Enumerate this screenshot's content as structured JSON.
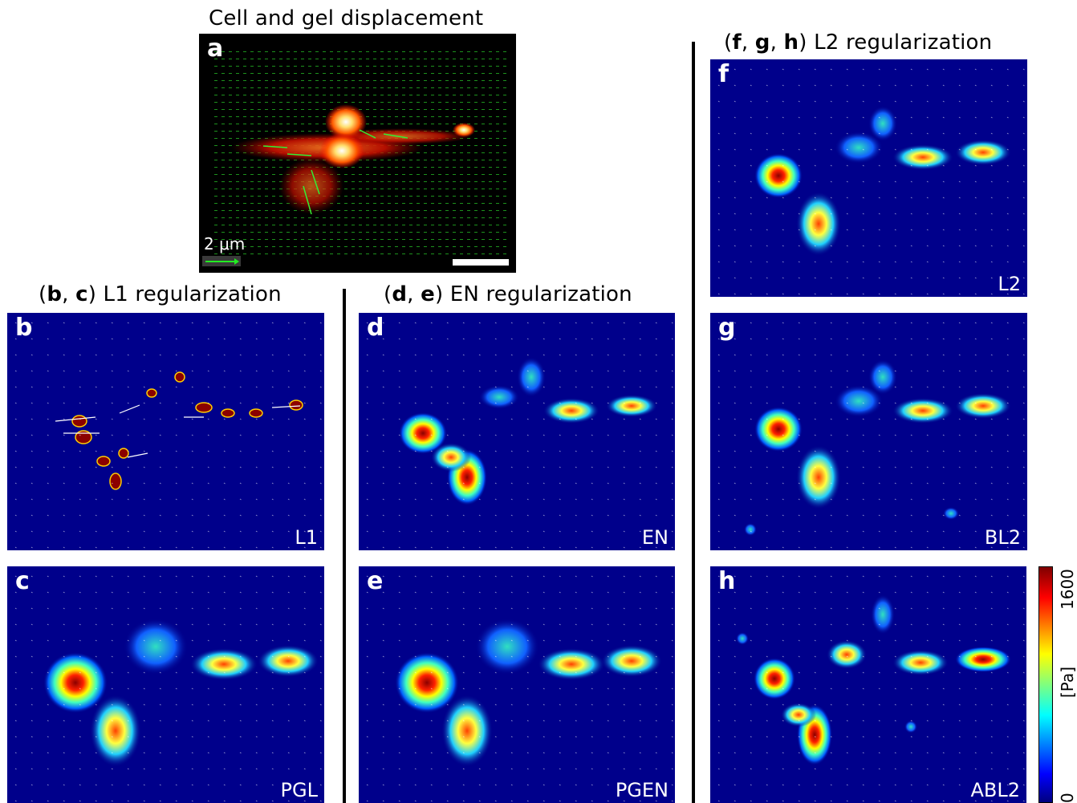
{
  "figure": {
    "top_title": "Cell and gel displacement",
    "scale_label": "2 μm",
    "group_l1": {
      "open": "(",
      "b": "b",
      "sep": ", ",
      "c": "c",
      "rest": ") L1 regularization"
    },
    "group_en": {
      "open": "(",
      "d": "d",
      "sep": ", ",
      "e": "e",
      "rest": ") EN regularization"
    },
    "group_l2": {
      "open": "(",
      "f": "f",
      "sep1": ", ",
      "g": "g",
      "sep2": ", ",
      "h": "h",
      "rest": ") L2 regularization"
    },
    "colorbar": {
      "max": "1600",
      "min": "0",
      "unit": "[Pa]"
    }
  },
  "panels": [
    {
      "id": "a",
      "label": "a",
      "method": ""
    },
    {
      "id": "b",
      "label": "b",
      "method": "L1"
    },
    {
      "id": "c",
      "label": "c",
      "method": "PGL"
    },
    {
      "id": "d",
      "label": "d",
      "method": "EN"
    },
    {
      "id": "e",
      "label": "e",
      "method": "PGEN"
    },
    {
      "id": "f",
      "label": "f",
      "method": "L2"
    },
    {
      "id": "g",
      "label": "g",
      "method": "BL2"
    },
    {
      "id": "h",
      "label": "h",
      "method": "ABL2"
    }
  ],
  "colors": {
    "background_low": "#00008b",
    "high": "#8b0000",
    "displacement_arrows": "#22dd22"
  }
}
